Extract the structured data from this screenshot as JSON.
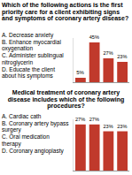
{
  "chart_data": [
    {
      "type": "bar",
      "title": "Which of the following actions is the first priority care for a client exhibiting signs and symptoms of coronary artery disease?",
      "annotations": [
        "A. Decrease anxiety",
        "B. Enhance myocardial oxygenation",
        "C. Administer sublingual nitroglycerin",
        "D. Educate the client about his symptoms"
      ],
      "categories": [
        null,
        null,
        null,
        null
      ],
      "values": [
        5,
        45,
        27,
        23
      ],
      "value_labels": [
        "5%",
        "45%",
        "27%",
        "23%"
      ],
      "color": "#c0392b",
      "ylim": [
        0,
        50
      ],
      "data_labels": true,
      "tick_labels": false,
      "grid": false
    },
    {
      "type": "bar",
      "title": "Medical treatment of coronary artery disease includes which of the following procedures?",
      "annotations": [
        "A. Cardiac cath",
        "B. Coronary artery bypass surgery",
        "C. Oral medication therapy",
        "D. Coronary angioplasty"
      ],
      "categories": [
        null,
        null,
        null,
        null
      ],
      "values": [
        27,
        27,
        23,
        23
      ],
      "value_labels": [
        "27%",
        "27%",
        "23%",
        "23%"
      ],
      "color": "#c0392b",
      "ylim": [
        0,
        30
      ],
      "data_labels": true,
      "tick_labels": false,
      "grid": false
    }
  ]
}
